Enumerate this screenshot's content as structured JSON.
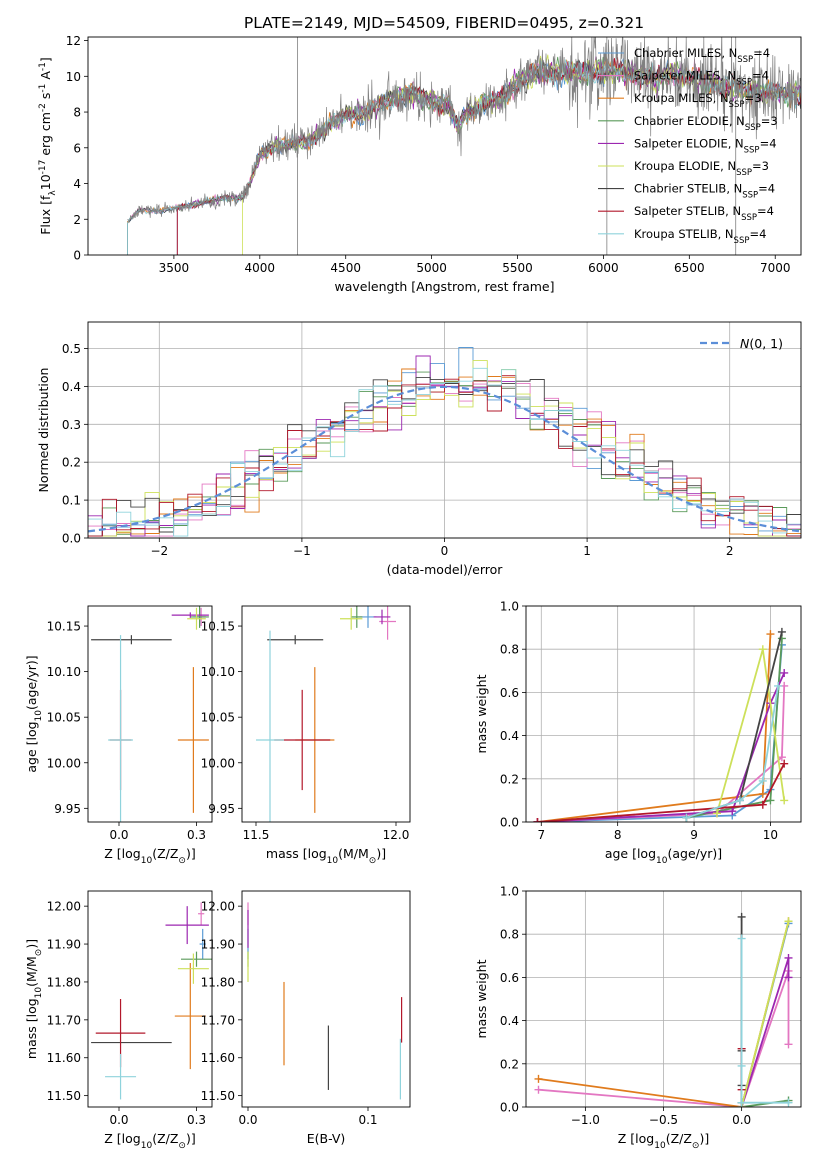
{
  "figure_title": "PLATE=2149, MJD=54509, FIBERID=0495, z=0.321",
  "colors": {
    "Chabrier MILES": "#5b9bd5",
    "Salpeter MILES": "#e377c2",
    "Kroupa MILES": "#e07b1d",
    "Chabrier ELODIE": "#5a9a5a",
    "Salpeter ELODIE": "#9c27b0",
    "Kroupa ELODIE": "#cde05a",
    "Chabrier STELIB": "#444444",
    "Salpeter STELIB": "#b2182b",
    "Kroupa STELIB": "#8fd3dc"
  },
  "chart_data": [
    {
      "id": "spectrum",
      "type": "line",
      "title": "",
      "xlabel": "wavelength [Angstrom, rest frame]",
      "ylabel": "Flux [f$_{\\lambda}$10$^{-17}$ erg cm$^{-2}$ s$^{-1}$ A$^{-1}$]",
      "xlim": [
        3000,
        7150
      ],
      "ylim": [
        0,
        12.2
      ],
      "xticks": [
        3500,
        4000,
        4500,
        5000,
        5500,
        6000,
        6500,
        7000
      ],
      "yticks": [
        0,
        2,
        4,
        6,
        8,
        10,
        12
      ],
      "legend_position": "top-right",
      "legend": [
        {
          "name": "Chabrier MILES",
          "label": "Chabrier MILES, N",
          "sub": "SSP",
          "tail": "=4"
        },
        {
          "name": "Salpeter MILES",
          "label": "Salpeter MILES, N",
          "sub": "SSP",
          "tail": "=4"
        },
        {
          "name": "Kroupa MILES",
          "label": "Kroupa MILES, N",
          "sub": "SSP",
          "tail": "=3"
        },
        {
          "name": "Chabrier ELODIE",
          "label": "Chabrier ELODIE, N",
          "sub": "SSP",
          "tail": "=3"
        },
        {
          "name": "Salpeter ELODIE",
          "label": "Salpeter ELODIE, N",
          "sub": "SSP",
          "tail": "=4"
        },
        {
          "name": "Kroupa ELODIE",
          "label": "Kroupa ELODIE, N",
          "sub": "SSP",
          "tail": "=3"
        },
        {
          "name": "Chabrier STELIB",
          "label": "Chabrier STELIB, N",
          "sub": "SSP",
          "tail": "=4"
        },
        {
          "name": "Salpeter STELIB",
          "label": "Salpeter STELIB, N",
          "sub": "SSP",
          "tail": "=4"
        },
        {
          "name": "Kroupa STELIB",
          "label": "Kroupa STELIB, N",
          "sub": "SSP",
          "tail": "=4"
        }
      ],
      "data_continuum": {
        "x": [
          3230,
          3300,
          3400,
          3500,
          3600,
          3700,
          3800,
          3900,
          3950,
          4000,
          4050,
          4100,
          4200,
          4300,
          4400,
          4500,
          4600,
          4700,
          4800,
          4900,
          5000,
          5100,
          5150,
          5200,
          5300,
          5400,
          5500,
          5600,
          5700,
          5800,
          5900,
          6000,
          6100,
          6200,
          6300,
          6400,
          6500,
          6600,
          6700,
          6800,
          6900,
          7000,
          7100
        ],
        "y": [
          1.8,
          2.5,
          2.5,
          2.6,
          2.8,
          3.0,
          3.2,
          3.2,
          4.2,
          5.6,
          5.9,
          6.1,
          6.2,
          6.4,
          7.3,
          7.8,
          7.9,
          8.4,
          8.9,
          9.0,
          8.6,
          8.4,
          7.2,
          7.9,
          8.5,
          8.7,
          9.6,
          10.2,
          10.3,
          10.2,
          10.2,
          10.3,
          10.3,
          10.1,
          9.8,
          10.2,
          9.9,
          9.8,
          9.4,
          9.3,
          9.1,
          9.1,
          9.0
        ]
      },
      "model_start_x": [
        3230,
        3230,
        3230,
        3520,
        3520,
        3900,
        3230,
        3520,
        3230
      ],
      "mask_lines_x": [
        4220,
        6020,
        6770
      ]
    },
    {
      "id": "residuals",
      "type": "histogram",
      "xlabel": "(data-model)/error",
      "ylabel": "Normed distribution",
      "xlim": [
        -2.5,
        2.5
      ],
      "ylim": [
        0,
        0.57
      ],
      "xticks": [
        -2,
        -1,
        0,
        1,
        2
      ],
      "yticks": [
        0.0,
        0.1,
        0.2,
        0.3,
        0.4,
        0.5
      ],
      "bin_width": 0.1,
      "reference": {
        "label": "N(0,1)",
        "mean": 0,
        "sigma": 1,
        "color": "#5b8ed8",
        "dash": true
      },
      "legend_position": "top-right"
    },
    {
      "id": "age-vs-Z",
      "type": "errorbar",
      "xlabel": "Z [log$_{10}$(Z/Z$_{\\odot}$)]",
      "ylabel": "age  [log$_{10}$(age/yr)]",
      "xlim": [
        -0.1,
        0.3
      ],
      "ylim": [
        9.935,
        10.172
      ],
      "xticks": [
        0.0,
        0.25
      ],
      "yticks": [
        9.95,
        10.0,
        10.05,
        10.1,
        10.15
      ],
      "points": [
        {
          "name": "Chabrier MILES",
          "x": 0.26,
          "y": 10.16,
          "xerr": 0.02,
          "yerr": 0.01
        },
        {
          "name": "Salpeter MILES",
          "x": 0.265,
          "y": 10.16,
          "xerr": 0.015,
          "yerr": 0.01
        },
        {
          "name": "Kroupa MILES",
          "x": 0.24,
          "y": 10.025,
          "xerr": 0.05,
          "yerr": 0.08
        },
        {
          "name": "Chabrier ELODIE",
          "x": 0.26,
          "y": 10.16,
          "xerr": 0.03,
          "yerr": 0.012
        },
        {
          "name": "Salpeter ELODIE",
          "x": 0.23,
          "y": 10.162,
          "xerr": 0.06,
          "yerr": 0.003
        },
        {
          "name": "Kroupa ELODIE",
          "x": 0.25,
          "y": 10.158,
          "xerr": 0.03,
          "yerr": 0.012
        },
        {
          "name": "Chabrier STELIB",
          "x": 0.04,
          "y": 10.135,
          "xerr": 0.13,
          "yerr": 0.005
        },
        {
          "name": "Salpeter STELIB",
          "x": 0.005,
          "y": 10.025,
          "xerr": 0.035,
          "yerr": 0.055
        },
        {
          "name": "Kroupa STELIB",
          "x": 0.005,
          "y": 10.025,
          "xerr": 0.04,
          "yerr": 0.115
        }
      ]
    },
    {
      "id": "age-vs-mass",
      "type": "errorbar",
      "xlabel": "mass [log$_{10}$(M/M$_{\\odot}$)]",
      "ylabel": "",
      "xlim": [
        11.45,
        12.05
      ],
      "ylim": [
        9.935,
        10.172
      ],
      "xticks": [
        11.5,
        12.0
      ],
      "yticks": [
        9.95,
        10.0,
        10.05,
        10.1,
        10.15
      ],
      "points": [
        {
          "name": "Chabrier MILES",
          "x": 11.9,
          "y": 10.16,
          "xerr": 0.03,
          "yerr": 0.012
        },
        {
          "name": "Salpeter MILES",
          "x": 11.97,
          "y": 10.155,
          "xerr": 0.03,
          "yerr": 0.02
        },
        {
          "name": "Kroupa MILES",
          "x": 11.71,
          "y": 10.025,
          "xerr": 0.07,
          "yerr": 0.08
        },
        {
          "name": "Chabrier ELODIE",
          "x": 11.86,
          "y": 10.16,
          "xerr": 0.02,
          "yerr": 0.012
        },
        {
          "name": "Salpeter ELODIE",
          "x": 11.95,
          "y": 10.16,
          "xerr": 0.03,
          "yerr": 0.008
        },
        {
          "name": "Kroupa ELODIE",
          "x": 11.84,
          "y": 10.158,
          "xerr": 0.04,
          "yerr": 0.012
        },
        {
          "name": "Chabrier STELIB",
          "x": 11.64,
          "y": 10.135,
          "xerr": 0.1,
          "yerr": 0.005
        },
        {
          "name": "Salpeter STELIB",
          "x": 11.665,
          "y": 10.025,
          "xerr": 0.1,
          "yerr": 0.055
        },
        {
          "name": "Kroupa STELIB",
          "x": 11.55,
          "y": 10.025,
          "xerr": 0.05,
          "yerr": 0.12
        }
      ]
    },
    {
      "id": "weight-vs-age",
      "type": "line",
      "xlabel": "age  [log$_{10}$(age/yr)]",
      "ylabel": "mass weight",
      "xlim": [
        6.8,
        10.4
      ],
      "ylim": [
        0,
        1.0
      ],
      "xticks": [
        7,
        8,
        9,
        10
      ],
      "yticks": [
        0.0,
        0.2,
        0.4,
        0.6,
        0.8,
        1.0
      ],
      "series": [
        {
          "name": "Chabrier MILES",
          "x": [
            6.95,
            9.5,
            10.0,
            10.15
          ],
          "y": [
            0.0,
            0.03,
            0.15,
            0.82
          ]
        },
        {
          "name": "Salpeter MILES",
          "x": [
            6.95,
            9.3,
            10.15,
            10.18
          ],
          "y": [
            0.0,
            0.04,
            0.3,
            0.63
          ]
        },
        {
          "name": "Kroupa MILES",
          "x": [
            6.95,
            9.9,
            10.0
          ],
          "y": [
            0.0,
            0.13,
            0.87
          ]
        },
        {
          "name": "Chabrier ELODIE",
          "x": [
            8.9,
            10.0,
            10.15
          ],
          "y": [
            0.02,
            0.1,
            0.85
          ]
        },
        {
          "name": "Salpeter ELODIE",
          "x": [
            6.95,
            9.5,
            10.0,
            10.18
          ],
          "y": [
            0.0,
            0.05,
            0.55,
            0.69
          ]
        },
        {
          "name": "Kroupa ELODIE",
          "x": [
            9.3,
            9.9,
            10.18
          ],
          "y": [
            0.04,
            0.8,
            0.1
          ]
        },
        {
          "name": "Chabrier STELIB",
          "x": [
            8.9,
            9.6,
            10.15
          ],
          "y": [
            0.02,
            0.1,
            0.88
          ]
        },
        {
          "name": "Salpeter STELIB",
          "x": [
            6.95,
            9.9,
            10.18
          ],
          "y": [
            0.0,
            0.08,
            0.27
          ]
        },
        {
          "name": "Kroupa STELIB",
          "x": [
            8.9,
            9.6,
            9.9,
            10.1
          ],
          "y": [
            0.02,
            0.1,
            0.19,
            0.63
          ]
        }
      ]
    },
    {
      "id": "mass-vs-Z",
      "type": "errorbar",
      "xlabel": "Z [log$_{10}$(Z/Z$_{\\odot}$)]",
      "ylabel": "mass [log$_{10}$(M/M$_{\\odot}$)]",
      "xlim": [
        -0.1,
        0.3
      ],
      "ylim": [
        11.47,
        12.04
      ],
      "xticks": [
        0.0,
        0.25
      ],
      "yticks": [
        11.5,
        11.6,
        11.7,
        11.8,
        11.9,
        12.0
      ],
      "points": [
        {
          "name": "Chabrier MILES",
          "x": 0.27,
          "y": 11.9,
          "xerr": 0.01,
          "yerr": 0.04
        },
        {
          "name": "Salpeter MILES",
          "x": 0.265,
          "y": 11.98,
          "xerr": 0.01,
          "yerr": 0.03
        },
        {
          "name": "Kroupa MILES",
          "x": 0.23,
          "y": 11.71,
          "xerr": 0.05,
          "yerr": 0.14
        },
        {
          "name": "Chabrier ELODIE",
          "x": 0.25,
          "y": 11.86,
          "xerr": 0.05,
          "yerr": 0.02
        },
        {
          "name": "Salpeter ELODIE",
          "x": 0.22,
          "y": 11.95,
          "xerr": 0.07,
          "yerr": 0.05
        },
        {
          "name": "Kroupa ELODIE",
          "x": 0.24,
          "y": 11.835,
          "xerr": 0.05,
          "yerr": 0.04
        },
        {
          "name": "Chabrier STELIB",
          "x": 0.04,
          "y": 11.64,
          "xerr": 0.13,
          "yerr": 0.0
        },
        {
          "name": "Salpeter STELIB",
          "x": 0.005,
          "y": 11.665,
          "xerr": 0.08,
          "yerr": 0.09
        },
        {
          "name": "Kroupa STELIB",
          "x": 0.005,
          "y": 11.55,
          "xerr": 0.05,
          "yerr": 0.06
        }
      ]
    },
    {
      "id": "mass-vs-EBV",
      "type": "errorbar",
      "xlabel": "E(B-V)",
      "ylabel": "",
      "xlim": [
        -0.005,
        0.135
      ],
      "ylim": [
        11.47,
        12.04
      ],
      "xticks": [
        0.0,
        0.1
      ],
      "yticks": [
        11.5,
        11.6,
        11.7,
        11.8,
        11.9,
        12.0
      ],
      "points": [
        {
          "name": "Chabrier MILES",
          "x": 0.0,
          "y": 11.9,
          "xerr": 0,
          "yerr": 0.04
        },
        {
          "name": "Salpeter MILES",
          "x": 0.0,
          "y": 11.98,
          "xerr": 0,
          "yerr": 0.03
        },
        {
          "name": "Kroupa MILES",
          "x": 0.03,
          "y": 11.69,
          "xerr": 0,
          "yerr": 0.11
        },
        {
          "name": "Chabrier ELODIE",
          "x": 0.0,
          "y": 11.86,
          "xerr": 0,
          "yerr": 0.02
        },
        {
          "name": "Salpeter ELODIE",
          "x": 0.0,
          "y": 11.94,
          "xerr": 0,
          "yerr": 0.05
        },
        {
          "name": "Kroupa ELODIE",
          "x": 0.0,
          "y": 11.84,
          "xerr": 0,
          "yerr": 0.04
        },
        {
          "name": "Chabrier STELIB",
          "x": 0.067,
          "y": 11.6,
          "xerr": 0,
          "yerr": 0.085
        },
        {
          "name": "Salpeter STELIB",
          "x": 0.128,
          "y": 11.7,
          "xerr": 0,
          "yerr": 0.06
        },
        {
          "name": "Kroupa STELIB",
          "x": 0.127,
          "y": 11.57,
          "xerr": 0,
          "yerr": 0.08
        }
      ]
    },
    {
      "id": "weight-vs-Z",
      "type": "line",
      "xlabel": "Z [log$_{10}$(Z/Z$_{\\odot}$)]",
      "ylabel": "mass weight",
      "xlim": [
        -1.38,
        0.38
      ],
      "ylim": [
        0,
        1.0
      ],
      "xticks": [
        -1.0,
        -0.5,
        0.0
      ],
      "yticks": [
        0.0,
        0.2,
        0.4,
        0.6,
        0.8,
        1.0
      ],
      "series": [
        {
          "name": "Chabrier MILES",
          "x": [
            0.0,
            0.3
          ],
          "y": [
            0.0,
            0.85
          ]
        },
        {
          "name": "Salpeter MILES",
          "x": [
            -1.3,
            0.0,
            0.3,
            0.3
          ],
          "y": [
            0.08,
            0.0,
            0.63,
            0.29
          ]
        },
        {
          "name": "Kroupa MILES",
          "x": [
            -1.3,
            0.0,
            0.3
          ],
          "y": [
            0.13,
            0.0,
            0.86
          ]
        },
        {
          "name": "Chabrier ELODIE",
          "x": [
            0.0,
            0.3
          ],
          "y": [
            0.0,
            0.03
          ]
        },
        {
          "name": "Salpeter ELODIE",
          "x": [
            0.0,
            0.3,
            0.3
          ],
          "y": [
            0.0,
            0.69,
            0.6
          ]
        },
        {
          "name": "Kroupa ELODIE",
          "x": [
            0.0,
            0.3
          ],
          "y": [
            0.0,
            0.86
          ]
        },
        {
          "name": "Chabrier STELIB",
          "x": [
            0.0,
            0.0,
            0.0,
            0.0
          ],
          "y": [
            0.88,
            0.26,
            0.1,
            0.02
          ]
        },
        {
          "name": "Salpeter STELIB",
          "x": [
            0.0,
            0.0
          ],
          "y": [
            0.27,
            0.08
          ]
        },
        {
          "name": "Kroupa STELIB",
          "x": [
            0.0,
            0.0,
            0.0,
            0.3
          ],
          "y": [
            0.78,
            0.19,
            0.02,
            0.02
          ]
        }
      ]
    }
  ]
}
